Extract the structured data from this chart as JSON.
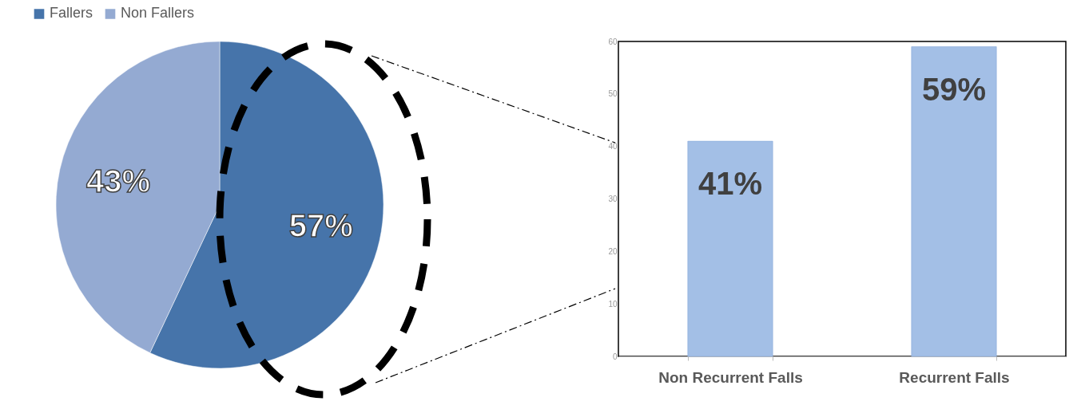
{
  "chart_data": [
    {
      "type": "pie",
      "categories": [
        "Fallers",
        "Non Fallers"
      ],
      "values": [
        57,
        43
      ],
      "colors": [
        "#4674aa",
        "#94aad2"
      ],
      "value_labels": [
        "57%",
        "43%"
      ],
      "legend": "top"
    },
    {
      "type": "bar",
      "categories": [
        "Non Recurrent Falls",
        "Recurrent Falls"
      ],
      "values": [
        41,
        59
      ],
      "color": "#a3bfe6",
      "value_labels": [
        "41%",
        "59%"
      ],
      "ylim": [
        0,
        60
      ],
      "yticks": [
        0,
        10,
        20,
        30,
        40,
        50,
        60
      ],
      "grid": false
    }
  ]
}
